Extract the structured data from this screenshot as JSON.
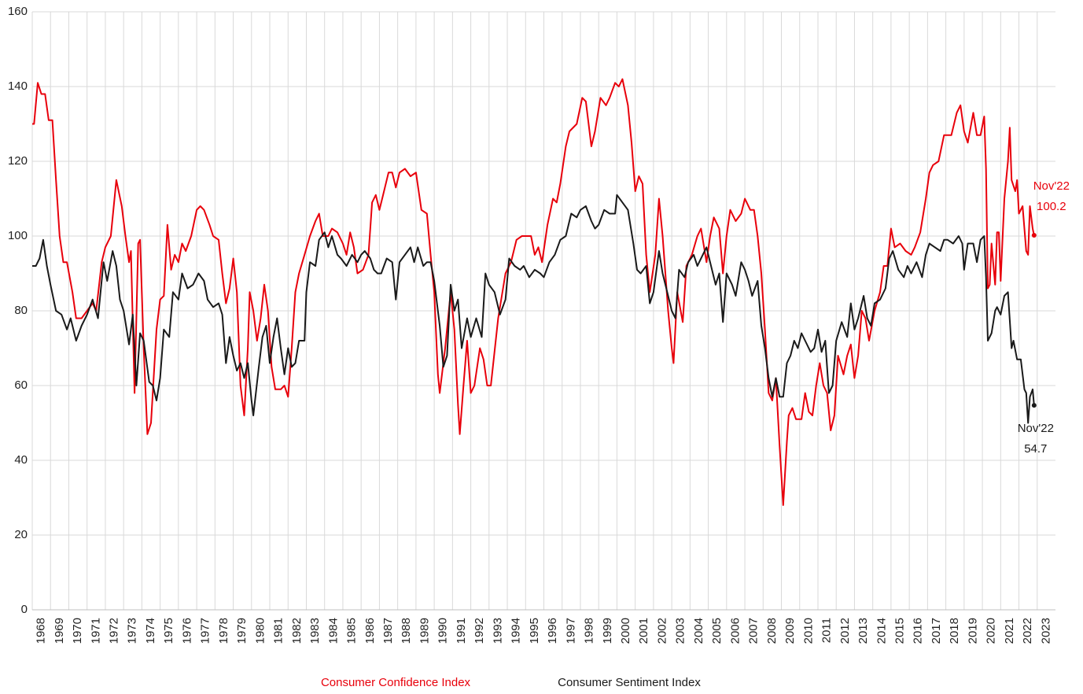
{
  "chart_data": {
    "type": "line",
    "xlim": [
      1968,
      2024
    ],
    "xticks": [
      1968,
      1969,
      1970,
      1971,
      1972,
      1973,
      1974,
      1975,
      1976,
      1977,
      1978,
      1979,
      1980,
      1981,
      1982,
      1983,
      1984,
      1985,
      1986,
      1987,
      1988,
      1989,
      1990,
      1991,
      1992,
      1993,
      1994,
      1995,
      1996,
      1997,
      1998,
      1999,
      2000,
      2001,
      2002,
      2003,
      2004,
      2005,
      2006,
      2007,
      2008,
      2009,
      2010,
      2011,
      2012,
      2013,
      2014,
      2015,
      2016,
      2017,
      2018,
      2019,
      2020,
      2021,
      2022,
      2023
    ],
    "ylim": [
      0,
      160
    ],
    "yticks": [
      0,
      20,
      40,
      60,
      80,
      100,
      120,
      140,
      160
    ],
    "grid": true,
    "legend": "bottom",
    "series": [
      {
        "name": "Consumer Confidence Index",
        "color": "#e8000b",
        "last_label": "Nov'22",
        "x": [
          1968.0,
          1968.1,
          1968.3,
          1968.5,
          1968.7,
          1968.9,
          1969.1,
          1969.3,
          1969.5,
          1969.7,
          1969.9,
          1970.2,
          1970.4,
          1970.7,
          1971.0,
          1971.3,
          1971.5,
          1971.8,
          1972.0,
          1972.3,
          1972.6,
          1972.9,
          1973.1,
          1973.3,
          1973.4,
          1973.6,
          1973.8,
          1973.9,
          1974.1,
          1974.3,
          1974.5,
          1974.8,
          1975.0,
          1975.2,
          1975.4,
          1975.6,
          1975.8,
          1976.0,
          1976.2,
          1976.4,
          1976.7,
          1977.0,
          1977.2,
          1977.4,
          1977.7,
          1977.9,
          1978.2,
          1978.4,
          1978.6,
          1978.8,
          1979.0,
          1979.2,
          1979.4,
          1979.6,
          1979.8,
          1979.9,
          1980.1,
          1980.3,
          1980.5,
          1980.7,
          1980.9,
          1981.1,
          1981.3,
          1981.6,
          1981.8,
          1982.0,
          1982.2,
          1982.4,
          1982.6,
          1982.9,
          1983.2,
          1983.5,
          1983.7,
          1983.9,
          1984.2,
          1984.4,
          1984.7,
          1985.0,
          1985.2,
          1985.4,
          1985.6,
          1985.8,
          1986.1,
          1986.4,
          1986.6,
          1986.8,
          1987.0,
          1987.2,
          1987.5,
          1987.7,
          1987.9,
          1988.1,
          1988.4,
          1988.7,
          1989.0,
          1989.3,
          1989.6,
          1989.8,
          1990.0,
          1990.2,
          1990.3,
          1990.6,
          1990.9,
          1991.1,
          1991.3,
          1991.4,
          1991.6,
          1991.8,
          1992.0,
          1992.2,
          1992.5,
          1992.7,
          1992.9,
          1993.1,
          1993.5,
          1993.9,
          1994.2,
          1994.5,
          1994.8,
          1995.3,
          1995.5,
          1995.7,
          1995.9,
          1996.2,
          1996.5,
          1996.7,
          1996.9,
          1997.2,
          1997.4,
          1997.8,
          1998.1,
          1998.3,
          1998.6,
          1998.8,
          1999.1,
          1999.4,
          1999.6,
          1999.9,
          2000.1,
          2000.3,
          2000.6,
          2000.8,
          2001.0,
          2001.2,
          2001.4,
          2001.6,
          2001.8,
          2002.1,
          2002.3,
          2002.5,
          2002.8,
          2003.0,
          2003.1,
          2003.3,
          2003.6,
          2003.8,
          2004.1,
          2004.4,
          2004.6,
          2004.9,
          2005.1,
          2005.3,
          2005.6,
          2005.8,
          2006.0,
          2006.2,
          2006.5,
          2006.8,
          2007.0,
          2007.3,
          2007.5,
          2007.7,
          2007.9,
          2008.1,
          2008.3,
          2008.5,
          2008.7,
          2008.9,
          2009.1,
          2009.3,
          2009.4,
          2009.6,
          2009.8,
          2010.1,
          2010.3,
          2010.5,
          2010.7,
          2010.9,
          2011.1,
          2011.3,
          2011.5,
          2011.7,
          2011.9,
          2012.1,
          2012.4,
          2012.6,
          2012.8,
          2013.0,
          2013.2,
          2013.4,
          2013.6,
          2013.8,
          2014.1,
          2014.4,
          2014.6,
          2014.8,
          2015.0,
          2015.2,
          2015.5,
          2015.8,
          2016.1,
          2016.3,
          2016.6,
          2016.9,
          2017.1,
          2017.3,
          2017.6,
          2017.9,
          2018.1,
          2018.3,
          2018.6,
          2018.8,
          2019.0,
          2019.2,
          2019.5,
          2019.7,
          2019.9,
          2020.1,
          2020.2,
          2020.3,
          2020.4,
          2020.5,
          2020.7,
          2020.8,
          2020.9,
          2021.0,
          2021.2,
          2021.4,
          2021.5,
          2021.6,
          2021.8,
          2021.9,
          2022.0,
          2022.2,
          2022.4,
          2022.5,
          2022.6,
          2022.75,
          2022.83
        ],
        "values": [
          130,
          130,
          141,
          138,
          138,
          131,
          131,
          115,
          100,
          93,
          93,
          85,
          78,
          78,
          80,
          82,
          80,
          93,
          97,
          100,
          115,
          108,
          100,
          93,
          96,
          58,
          98,
          99,
          70,
          47,
          50,
          75,
          83,
          84,
          103,
          91,
          95,
          93,
          98,
          96,
          100,
          107,
          108,
          107,
          103,
          100,
          99,
          90,
          82,
          86,
          94,
          85,
          60,
          52,
          70,
          85,
          80,
          72,
          78,
          87,
          80,
          65,
          59,
          59,
          60,
          57,
          70,
          85,
          90,
          95,
          100,
          104,
          106,
          100,
          100,
          102,
          101,
          98,
          95,
          101,
          97,
          90,
          91,
          95,
          109,
          111,
          107,
          111,
          117,
          117,
          113,
          117,
          118,
          116,
          117,
          107,
          106,
          95,
          85,
          63,
          58,
          70,
          85,
          75,
          55,
          47,
          60,
          72,
          58,
          60,
          70,
          67,
          60,
          60,
          78,
          90,
          93,
          99,
          100,
          100,
          95,
          97,
          93,
          103,
          110,
          109,
          114,
          124,
          128,
          130,
          137,
          136,
          124,
          128,
          137,
          135,
          137,
          141,
          140,
          142,
          135,
          125,
          112,
          116,
          114,
          95,
          85,
          95,
          110,
          100,
          80,
          70,
          66,
          85,
          77,
          92,
          95,
          100,
          102,
          93,
          100,
          105,
          102,
          90,
          100,
          107,
          104,
          106,
          110,
          107,
          107,
          100,
          90,
          75,
          58,
          56,
          62,
          44,
          28,
          45,
          52,
          54,
          51,
          51,
          58,
          53,
          52,
          60,
          66,
          60,
          58,
          48,
          52,
          68,
          63,
          68,
          71,
          62,
          68,
          80,
          78,
          72,
          80,
          85,
          92,
          92,
          102,
          97,
          98,
          96,
          95,
          97,
          101,
          110,
          117,
          119,
          120,
          127,
          127,
          127,
          133,
          135,
          128,
          125,
          133,
          127,
          127,
          132,
          118,
          86,
          87,
          98,
          87,
          101,
          101,
          88,
          110,
          120,
          129,
          115,
          112,
          115,
          106,
          108,
          96,
          95,
          108,
          102,
          100.2
        ]
      },
      {
        "name": "Consumer Sentiment Index",
        "color": "#1a1a1a",
        "last_label": "Nov'22",
        "x": [
          1968.0,
          1968.2,
          1968.4,
          1968.6,
          1968.8,
          1969.0,
          1969.3,
          1969.6,
          1969.9,
          1970.1,
          1970.4,
          1970.7,
          1971.0,
          1971.3,
          1971.6,
          1971.9,
          1972.1,
          1972.4,
          1972.6,
          1972.8,
          1973.0,
          1973.3,
          1973.5,
          1973.7,
          1973.9,
          1974.1,
          1974.4,
          1974.6,
          1974.8,
          1975.0,
          1975.2,
          1975.5,
          1975.7,
          1976.0,
          1976.2,
          1976.5,
          1976.8,
          1977.1,
          1977.4,
          1977.6,
          1977.9,
          1978.2,
          1978.4,
          1978.6,
          1978.8,
          1979.0,
          1979.2,
          1979.4,
          1979.6,
          1979.8,
          1980.0,
          1980.1,
          1980.4,
          1980.6,
          1980.8,
          1981.0,
          1981.2,
          1981.4,
          1981.6,
          1981.8,
          1982.0,
          1982.2,
          1982.4,
          1982.6,
          1982.9,
          1983.0,
          1983.2,
          1983.5,
          1983.7,
          1984.0,
          1984.2,
          1984.4,
          1984.7,
          1984.9,
          1985.2,
          1985.5,
          1985.8,
          1986.0,
          1986.2,
          1986.5,
          1986.7,
          1986.9,
          1987.1,
          1987.4,
          1987.7,
          1987.9,
          1988.1,
          1988.4,
          1988.7,
          1988.9,
          1989.1,
          1989.4,
          1989.6,
          1989.8,
          1990.0,
          1990.3,
          1990.5,
          1990.7,
          1990.9,
          1991.1,
          1991.3,
          1991.5,
          1991.8,
          1992.0,
          1992.3,
          1992.6,
          1992.8,
          1993.0,
          1993.3,
          1993.6,
          1993.9,
          1994.1,
          1994.4,
          1994.7,
          1994.9,
          1995.2,
          1995.5,
          1995.8,
          1996.0,
          1996.3,
          1996.6,
          1996.9,
          1997.2,
          1997.5,
          1997.8,
          1998.0,
          1998.3,
          1998.6,
          1998.8,
          1999.0,
          1999.3,
          1999.6,
          1999.9,
          2000.0,
          2000.3,
          2000.6,
          2000.9,
          2001.1,
          2001.3,
          2001.6,
          2001.8,
          2002.0,
          2002.3,
          2002.5,
          2002.7,
          2003.0,
          2003.2,
          2003.4,
          2003.7,
          2003.9,
          2004.2,
          2004.4,
          2004.7,
          2004.9,
          2005.1,
          2005.4,
          2005.6,
          2005.8,
          2006.0,
          2006.3,
          2006.5,
          2006.8,
          2007.0,
          2007.2,
          2007.4,
          2007.7,
          2007.9,
          2008.1,
          2008.3,
          2008.5,
          2008.7,
          2008.9,
          2009.1,
          2009.3,
          2009.5,
          2009.7,
          2009.9,
          2010.1,
          2010.3,
          2010.6,
          2010.8,
          2011.0,
          2011.2,
          2011.4,
          2011.6,
          2011.8,
          2012.0,
          2012.3,
          2012.6,
          2012.8,
          2013.0,
          2013.2,
          2013.5,
          2013.7,
          2013.9,
          2014.1,
          2014.4,
          2014.7,
          2014.9,
          2015.1,
          2015.4,
          2015.7,
          2015.9,
          2016.1,
          2016.4,
          2016.7,
          2016.9,
          2017.1,
          2017.4,
          2017.7,
          2017.9,
          2018.1,
          2018.4,
          2018.7,
          2018.9,
          2019.0,
          2019.2,
          2019.5,
          2019.7,
          2019.9,
          2020.1,
          2020.2,
          2020.3,
          2020.5,
          2020.7,
          2020.8,
          2021.0,
          2021.2,
          2021.4,
          2021.6,
          2021.7,
          2021.9,
          2022.1,
          2022.3,
          2022.4,
          2022.5,
          2022.6,
          2022.75,
          2022.83
        ],
        "values": [
          92,
          92,
          94,
          99,
          92,
          87,
          80,
          79,
          75,
          78,
          72,
          76,
          79,
          83,
          78,
          93,
          88,
          96,
          92,
          83,
          80,
          71,
          79,
          60,
          74,
          72,
          61,
          60,
          56,
          62,
          75,
          73,
          85,
          83,
          90,
          86,
          87,
          90,
          88,
          83,
          81,
          82,
          79,
          66,
          73,
          68,
          64,
          66,
          62,
          66,
          56,
          52,
          65,
          73,
          76,
          66,
          73,
          78,
          70,
          63,
          70,
          65,
          66,
          72,
          72,
          85,
          93,
          92,
          99,
          101,
          97,
          100,
          95,
          94,
          92,
          95,
          93,
          95,
          96,
          94,
          91,
          90,
          90,
          94,
          93,
          83,
          93,
          95,
          97,
          93,
          97,
          92,
          93,
          93,
          88,
          76,
          65,
          68,
          87,
          80,
          83,
          70,
          78,
          73,
          78,
          73,
          90,
          87,
          85,
          79,
          83,
          94,
          92,
          91,
          92,
          89,
          91,
          90,
          89,
          93,
          95,
          99,
          100,
          106,
          105,
          107,
          108,
          104,
          102,
          103,
          107,
          106,
          106,
          111,
          109,
          107,
          98,
          91,
          90,
          92,
          82,
          85,
          96,
          90,
          86,
          80,
          78,
          91,
          89,
          93,
          95,
          92,
          95,
          97,
          93,
          87,
          90,
          77,
          90,
          87,
          84,
          93,
          91,
          88,
          84,
          88,
          76,
          70,
          62,
          57,
          62,
          57,
          57,
          66,
          68,
          72,
          70,
          74,
          72,
          69,
          70,
          75,
          69,
          72,
          58,
          60,
          72,
          77,
          73,
          82,
          75,
          78,
          84,
          78,
          76,
          82,
          83,
          86,
          94,
          96,
          91,
          89,
          92,
          90,
          93,
          89,
          95,
          98,
          97,
          96,
          99,
          99,
          98,
          100,
          98,
          91,
          98,
          98,
          93,
          99,
          100,
          89,
          72,
          74,
          80,
          81,
          79,
          84,
          85,
          70,
          72,
          67,
          67,
          59,
          58,
          50,
          57,
          59,
          54.7
        ]
      }
    ]
  }
}
